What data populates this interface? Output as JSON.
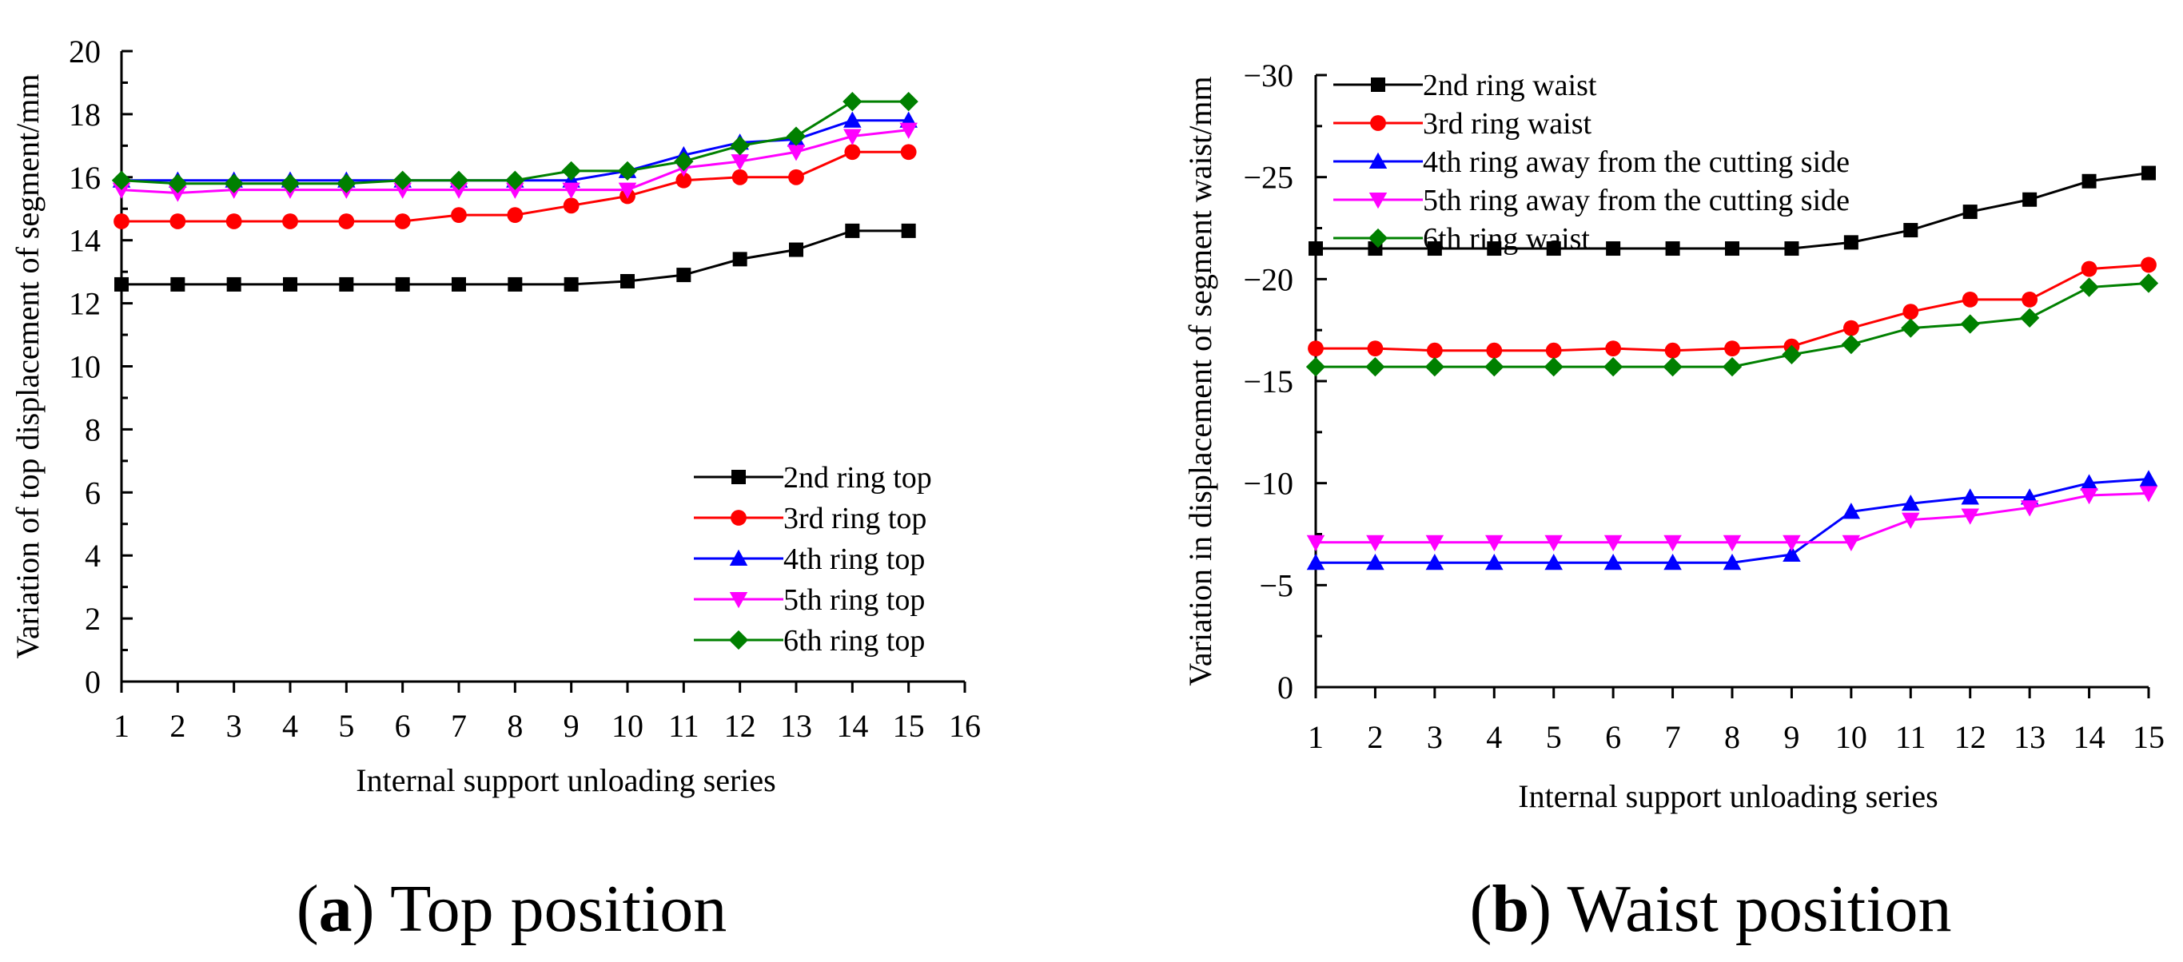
{
  "chart_data": [
    {
      "type": "line",
      "caption": {
        "open": "(",
        "letter": "a",
        "close": ")",
        "text": " Top position"
      },
      "xlabel": "Internal support unloading series",
      "ylabel": "Variation of top displacement of segment/mm",
      "xlim": [
        1,
        16
      ],
      "ylim": [
        0,
        20
      ],
      "xticks": [
        1,
        2,
        3,
        4,
        5,
        6,
        7,
        8,
        9,
        10,
        11,
        12,
        13,
        14,
        15,
        16
      ],
      "yticks": [
        0,
        2,
        4,
        6,
        8,
        10,
        12,
        14,
        16,
        18,
        20
      ],
      "legend_position": "lower-right",
      "x": [
        1,
        2,
        3,
        4,
        5,
        6,
        7,
        8,
        9,
        10,
        11,
        12,
        13,
        14,
        15
      ],
      "series": [
        {
          "name": "2nd ring top",
          "color": "#000000",
          "marker": "square",
          "values": [
            12.6,
            12.6,
            12.6,
            12.6,
            12.6,
            12.6,
            12.6,
            12.6,
            12.6,
            12.7,
            12.9,
            13.4,
            13.7,
            14.3,
            14.3
          ]
        },
        {
          "name": "3rd ring top",
          "color": "#ff0000",
          "marker": "circle",
          "values": [
            14.6,
            14.6,
            14.6,
            14.6,
            14.6,
            14.6,
            14.8,
            14.8,
            15.1,
            15.4,
            15.9,
            16.0,
            16.0,
            16.8,
            16.8
          ]
        },
        {
          "name": "4th ring top",
          "color": "#0000ff",
          "marker": "triangle-up",
          "values": [
            15.9,
            15.9,
            15.9,
            15.9,
            15.9,
            15.9,
            15.9,
            15.9,
            15.9,
            16.2,
            16.7,
            17.1,
            17.2,
            17.8,
            17.8
          ]
        },
        {
          "name": "5th ring top",
          "color": "#ff00ff",
          "marker": "triangle-down",
          "values": [
            15.6,
            15.5,
            15.6,
            15.6,
            15.6,
            15.6,
            15.6,
            15.6,
            15.6,
            15.6,
            16.3,
            16.5,
            16.8,
            17.3,
            17.5
          ]
        },
        {
          "name": "6th ring top",
          "color": "#008000",
          "marker": "diamond",
          "values": [
            15.9,
            15.8,
            15.8,
            15.8,
            15.8,
            15.9,
            15.9,
            15.9,
            16.2,
            16.2,
            16.5,
            17.0,
            17.3,
            18.4,
            18.4
          ]
        }
      ]
    },
    {
      "type": "line",
      "caption": {
        "open": "(",
        "letter": "b",
        "close": ")",
        "text": " Waist position"
      },
      "xlabel": "Internal support unloading series",
      "ylabel": "Variation in displacement of segment waist/mm",
      "xlim": [
        1,
        15
      ],
      "ylim": [
        0,
        -30
      ],
      "xticks": [
        1,
        2,
        3,
        4,
        5,
        6,
        7,
        8,
        9,
        10,
        11,
        12,
        13,
        14,
        15
      ],
      "yticks": [
        0,
        -5,
        -10,
        -15,
        -20,
        -25,
        -30
      ],
      "ytick_labels": [
        "0",
        "−5",
        "−10",
        "−15",
        "−20",
        "−25",
        "−30"
      ],
      "legend_position": "top-left",
      "x": [
        1,
        2,
        3,
        4,
        5,
        6,
        7,
        8,
        9,
        10,
        11,
        12,
        13,
        14,
        15
      ],
      "series": [
        {
          "name": "2nd ring waist",
          "color": "#000000",
          "marker": "square",
          "values": [
            -21.5,
            -21.5,
            -21.5,
            -21.5,
            -21.5,
            -21.5,
            -21.5,
            -21.5,
            -21.5,
            -21.8,
            -22.4,
            -23.3,
            -23.9,
            -24.8,
            -25.2
          ]
        },
        {
          "name": "3rd ring waist",
          "color": "#ff0000",
          "marker": "circle",
          "values": [
            -16.6,
            -16.6,
            -16.5,
            -16.5,
            -16.5,
            -16.6,
            -16.5,
            -16.6,
            -16.7,
            -17.6,
            -18.4,
            -19.0,
            -19.0,
            -20.5,
            -20.7
          ]
        },
        {
          "name": "4th ring away from the cutting side",
          "color": "#0000ff",
          "marker": "triangle-up",
          "values": [
            -6.1,
            -6.1,
            -6.1,
            -6.1,
            -6.1,
            -6.1,
            -6.1,
            -6.1,
            -6.5,
            -8.6,
            -9.0,
            -9.3,
            -9.3,
            -10.0,
            -10.2
          ]
        },
        {
          "name": "5th ring away from the cutting side",
          "color": "#ff00ff",
          "marker": "triangle-down",
          "values": [
            -7.1,
            -7.1,
            -7.1,
            -7.1,
            -7.1,
            -7.1,
            -7.1,
            -7.1,
            -7.1,
            -7.1,
            -8.2,
            -8.4,
            -8.8,
            -9.4,
            -9.5
          ]
        },
        {
          "name": "6th ring waist",
          "color": "#008000",
          "marker": "diamond",
          "values": [
            -15.7,
            -15.7,
            -15.7,
            -15.7,
            -15.7,
            -15.7,
            -15.7,
            -15.7,
            -16.3,
            -16.8,
            -17.6,
            -17.8,
            -18.1,
            -19.6,
            -19.8
          ]
        }
      ]
    }
  ]
}
